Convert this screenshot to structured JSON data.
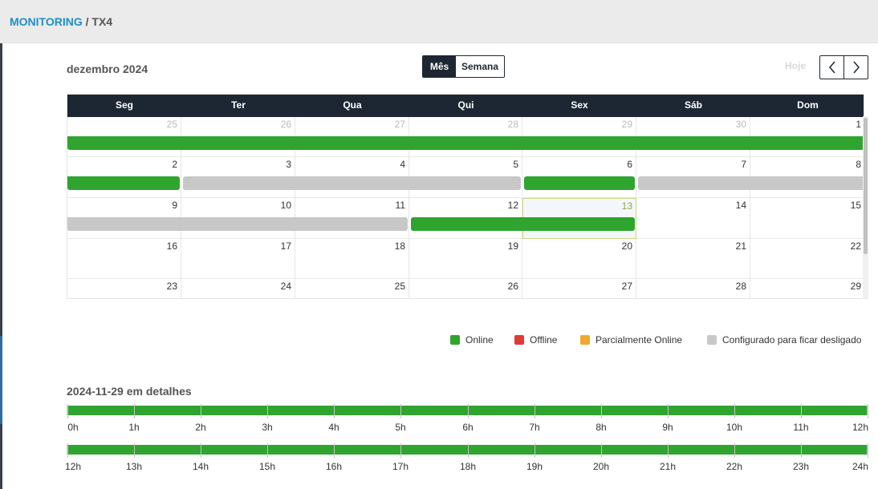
{
  "breadcrumb": {
    "section": "MONITORING",
    "separator": " / ",
    "device": "TX4"
  },
  "calendar": {
    "month_title": "dezembro 2024",
    "view_toggle": {
      "month": "Mês",
      "week": "Semana"
    },
    "today_label": "Hoje",
    "prev_icon": "chevron-left-icon",
    "next_icon": "chevron-right-icon",
    "weekdays": [
      "Seg",
      "Ter",
      "Qua",
      "Qui",
      "Sex",
      "Sáb",
      "Dom"
    ],
    "weeks": [
      [
        "25",
        "26",
        "27",
        "28",
        "29",
        "30",
        "1"
      ],
      [
        "2",
        "3",
        "4",
        "5",
        "6",
        "7",
        "8"
      ],
      [
        "9",
        "10",
        "11",
        "12",
        "13",
        "14",
        "15"
      ],
      [
        "16",
        "17",
        "18",
        "19",
        "20",
        "21",
        "22"
      ],
      [
        "23",
        "24",
        "25",
        "26",
        "27",
        "28",
        "29"
      ]
    ],
    "today": "13",
    "events": [
      {
        "week": 0,
        "from_day": 0,
        "to_day": 6,
        "status": "online"
      },
      {
        "week": 1,
        "from_day": 0,
        "to_day": 0,
        "status": "online"
      },
      {
        "week": 1,
        "from_day": 1,
        "to_day": 3,
        "status": "configured_off"
      },
      {
        "week": 1,
        "from_day": 4,
        "to_day": 4,
        "status": "online"
      },
      {
        "week": 1,
        "from_day": 5,
        "to_day": 6,
        "status": "configured_off"
      },
      {
        "week": 2,
        "from_day": 0,
        "to_day": 2,
        "status": "configured_off"
      },
      {
        "week": 2,
        "from_day": 3,
        "to_day": 4,
        "status": "online"
      }
    ]
  },
  "legend": [
    {
      "label": "Online",
      "color": "#2fa42f"
    },
    {
      "label": "Offline",
      "color": "#e53935"
    },
    {
      "label": "Parcialmente Online",
      "color": "#f0a92c"
    },
    {
      "label": "Configurado para ficar desligado",
      "color": "#c8c8c8"
    }
  ],
  "details": {
    "title": "2024-11-29 em detalhes",
    "row1_labels": [
      "0h",
      "1h",
      "2h",
      "3h",
      "4h",
      "5h",
      "6h",
      "7h",
      "8h",
      "9h",
      "10h",
      "11h",
      "12h"
    ],
    "row2_labels": [
      "12h",
      "13h",
      "14h",
      "15h",
      "16h",
      "17h",
      "18h",
      "19h",
      "20h",
      "21h",
      "22h",
      "23h",
      "24h"
    ],
    "row1_status": "online",
    "row2_status": "online"
  }
}
